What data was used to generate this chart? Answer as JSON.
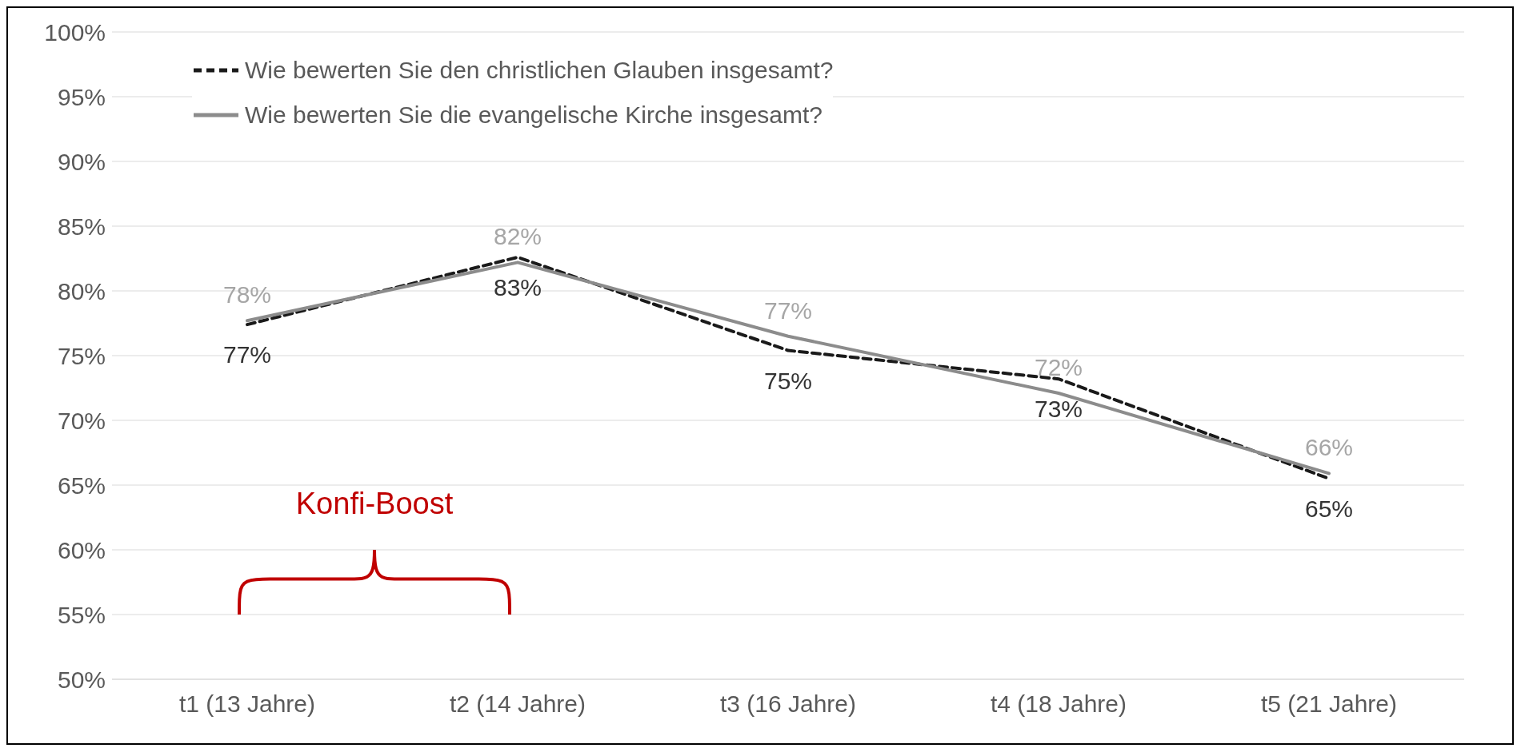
{
  "chart_data": {
    "type": "line",
    "categories": [
      "t1 (13 Jahre)",
      "t2 (14 Jahre)",
      "t3 (16 Jahre)",
      "t4 (18 Jahre)",
      "t5 (21 Jahre)"
    ],
    "series": [
      {
        "name": "Wie bewerten Sie den christlichen Glauben insgesamt?",
        "color": "#1a1a1a",
        "line_style": "dashed",
        "values": [
          77.4,
          82.6,
          75.4,
          73.2,
          65.5
        ],
        "value_labels": [
          "77%",
          "83%",
          "75%",
          "73%",
          "65%"
        ]
      },
      {
        "name": "Wie bewerten Sie die evangelische Kirche insgesamt?",
        "color": "#8c8c8c",
        "line_style": "solid",
        "values": [
          77.7,
          82.2,
          76.5,
          72.1,
          65.9
        ],
        "value_labels": [
          "78%",
          "82%",
          "77%",
          "72%",
          "66%"
        ]
      }
    ],
    "ylim": [
      50,
      100
    ],
    "yticks": [
      {
        "value": 50,
        "label": "50%"
      },
      {
        "value": 55,
        "label": "55%"
      },
      {
        "value": 60,
        "label": "60%"
      },
      {
        "value": 65,
        "label": "65%"
      },
      {
        "value": 70,
        "label": "70%"
      },
      {
        "value": 75,
        "label": "75%"
      },
      {
        "value": 80,
        "label": "80%"
      },
      {
        "value": 85,
        "label": "85%"
      },
      {
        "value": 90,
        "label": "90%"
      },
      {
        "value": 95,
        "label": "95%"
      },
      {
        "value": 100,
        "label": "100%"
      }
    ],
    "grid": "y",
    "legend": "top left",
    "marker": "none",
    "annotations": [
      "Konfi-Boost"
    ]
  }
}
